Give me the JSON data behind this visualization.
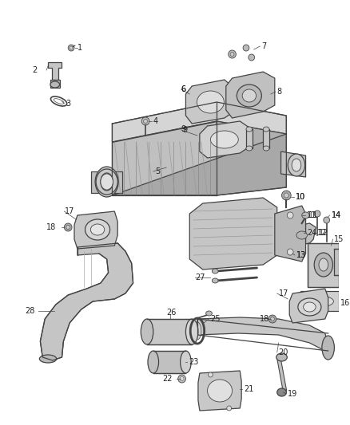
{
  "bg_color": "#ffffff",
  "fig_width": 4.38,
  "fig_height": 5.33,
  "dpi": 100,
  "line_color": "#444444",
  "label_fontsize": 7.0,
  "label_color": "#222222",
  "part_fill": "#d8d8d8",
  "part_fill_dark": "#b8b8b8",
  "part_fill_light": "#e8e8e8"
}
